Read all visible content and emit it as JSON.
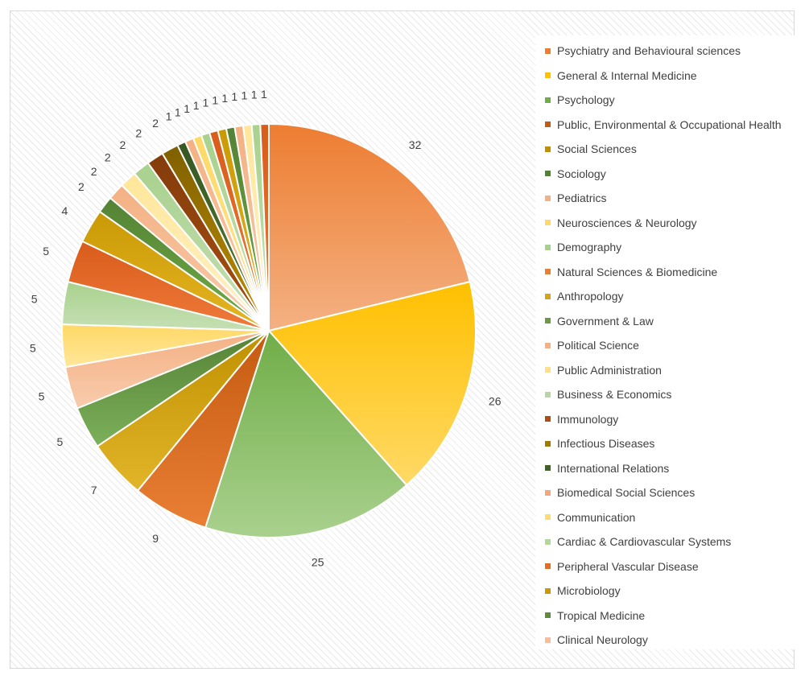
{
  "chart_data": {
    "type": "pie",
    "legend_position": "right",
    "categories": [
      "Psychiatry and Behavioural sciences",
      "General & Internal Medicine",
      "Psychology",
      "Public, Environmental & Occupational Health",
      "Social Sciences",
      "Sociology",
      "Pediatrics",
      "Neurosciences & Neurology",
      "Demography",
      "Natural Sciences & Biomedicine",
      "Anthropology",
      "Government & Law",
      "Political Science",
      "Public Administration",
      "Business & Economics",
      "Immunology",
      "Infectious Diseases",
      "International Relations",
      "Biomedical Social Sciences",
      "Communication",
      "Cardiac & Cardiovascular Systems",
      "Peripheral Vascular Disease",
      "Microbiology",
      "Tropical Medicine",
      "Clinical Neurology",
      "",
      "",
      ""
    ],
    "values": [
      32,
      26,
      25,
      9,
      7,
      5,
      5,
      5,
      5,
      5,
      4,
      2,
      2,
      2,
      2,
      2,
      2,
      1,
      1,
      1,
      1,
      1,
      1,
      1,
      1,
      1,
      1,
      1
    ],
    "colors": {
      "orange": [
        "#ED7D31",
        "#F4B183"
      ],
      "gold": [
        "#FFC000",
        "#FFD966"
      ],
      "green": [
        "#70AD47",
        "#A9D18E"
      ],
      "rust": [
        "#C55A11",
        "#E97F35"
      ],
      "olive": [
        "#BF9000",
        "#E2B52A"
      ],
      "darkgreen": [
        "#548235",
        "#7CB05A"
      ],
      "peach": [
        "#F4B183",
        "#F8CBAD"
      ],
      "lightgold": [
        "#FFD966",
        "#FFE699"
      ],
      "lightgreen": [
        "#A9D18E",
        "#C5E0B4"
      ],
      "darkorange": [
        "#D85C1B",
        "#F07A3A"
      ],
      "darkgold": [
        "#C99A06",
        "#E6B422"
      ],
      "forest": [
        "#548235",
        "#70AD47"
      ],
      "salmon": [
        "#F4B183",
        "#F8CBAD"
      ],
      "pale": [
        "#FFE699",
        "#FFF2CC"
      ],
      "pastel": [
        "#A9D18E",
        "#C5E0B4"
      ],
      "brown": [
        "#843C0C",
        "#A9500F"
      ],
      "mustard": [
        "#7F6000",
        "#BF9000"
      ],
      "pine": [
        "#375623",
        "#548235"
      ]
    },
    "slice_color_order": [
      "orange",
      "gold",
      "green",
      "rust",
      "olive",
      "darkgreen",
      "peach",
      "lightgold",
      "lightgreen",
      "darkorange",
      "darkgold",
      "forest",
      "salmon",
      "pale",
      "pastel",
      "brown",
      "mustard",
      "pine",
      "peach",
      "lightgold",
      "lightgreen",
      "darkorange",
      "darkgold",
      "forest",
      "salmon",
      "pale",
      "pastel",
      "darkorange"
    ],
    "legend_colors": [
      "#ED7D31",
      "#FFC000",
      "#70AD47",
      "#C55A11",
      "#BF9000",
      "#548235",
      "#F4B183",
      "#FFD966",
      "#A9D18E",
      "#E97F35",
      "#D4A514",
      "#6A9A43",
      "#F4B183",
      "#FFE08A",
      "#B7D7A0",
      "#B34D0F",
      "#A07A00",
      "#3E6228",
      "#F4A77A",
      "#FFDB70",
      "#B3D69A",
      "#E46C25",
      "#C99A06",
      "#5E8E3B",
      "#F6BD9C"
    ]
  }
}
